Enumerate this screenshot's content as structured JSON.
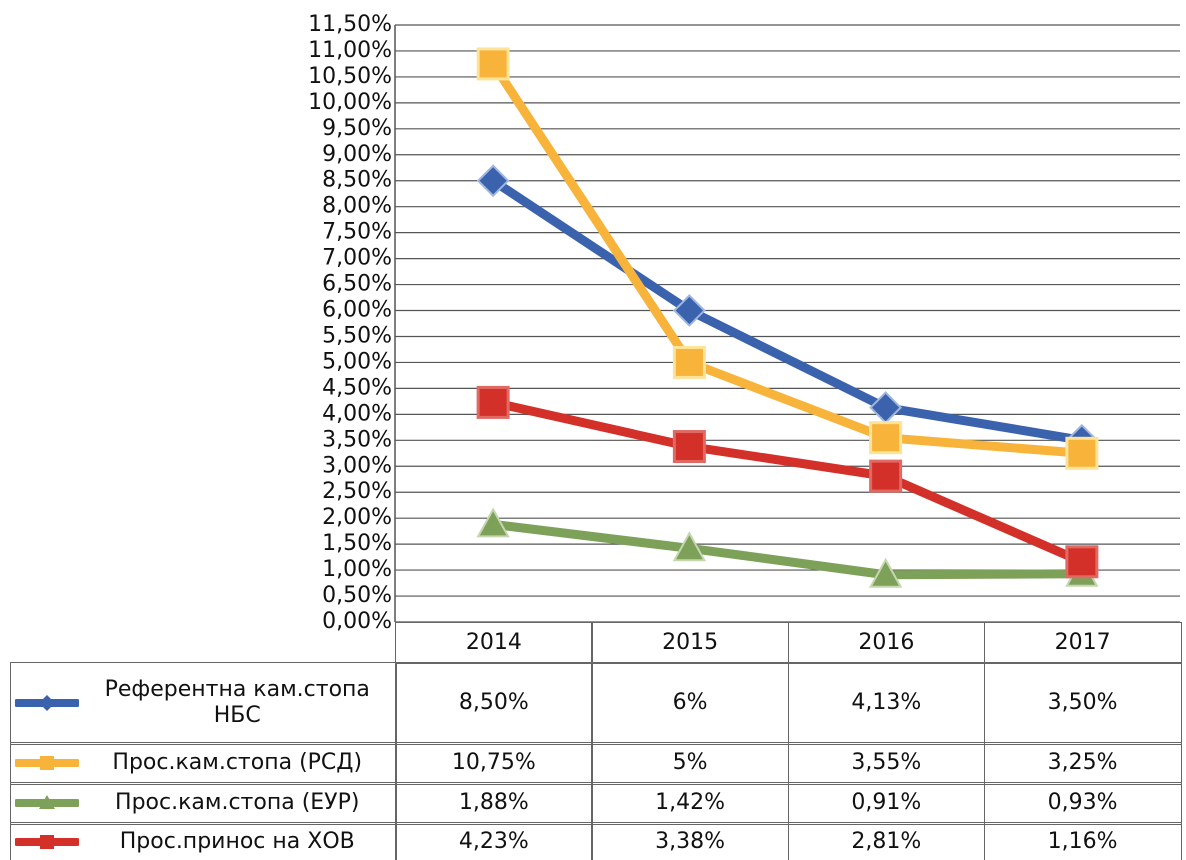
{
  "chart_data": {
    "type": "line",
    "categories": [
      "2014",
      "2015",
      "2016",
      "2017"
    ],
    "series": [
      {
        "name": "Референтна кам.стопа НБС",
        "color": "#3a62ad",
        "marker": "diamond",
        "values": [
          8.5,
          6,
          4.13,
          3.5
        ],
        "value_labels": [
          "8,50%",
          "6%",
          "4,13%",
          "3,50%"
        ]
      },
      {
        "name": "Прос.кам.стопа (РСД)",
        "color": "#f7b33a",
        "marker": "square",
        "values": [
          10.75,
          5,
          3.55,
          3.25
        ],
        "value_labels": [
          "10,75%",
          "5%",
          "3,55%",
          "3,25%"
        ]
      },
      {
        "name": "Прос.кам.стопа (ЕУР)",
        "color": "#7ea15a",
        "marker": "triangle",
        "values": [
          1.88,
          1.42,
          0.91,
          0.93
        ],
        "value_labels": [
          "1,88%",
          "1,42%",
          "0,91%",
          "0,93%"
        ]
      },
      {
        "name": "Прос.принос на ХОВ",
        "color": "#d4302a",
        "marker": "square",
        "values": [
          4.23,
          3.38,
          2.81,
          1.16
        ],
        "value_labels": [
          "4,23%",
          "3,38%",
          "2,81%",
          "1,16%"
        ]
      }
    ],
    "ylim": [
      0,
      11.5
    ],
    "yticks": [
      {
        "value": 0,
        "label": "0,00%"
      },
      {
        "value": 0.5,
        "label": "0,50%"
      },
      {
        "value": 1,
        "label": "1,00%"
      },
      {
        "value": 1.5,
        "label": "1,50%"
      },
      {
        "value": 2,
        "label": "2,00%"
      },
      {
        "value": 2.5,
        "label": "2,50%"
      },
      {
        "value": 3,
        "label": "3,00%"
      },
      {
        "value": 3.5,
        "label": "3,50%"
      },
      {
        "value": 4,
        "label": "4,00%"
      },
      {
        "value": 4.5,
        "label": "4,50%"
      },
      {
        "value": 5,
        "label": "5,00%"
      },
      {
        "value": 5.5,
        "label": "5,50%"
      },
      {
        "value": 6,
        "label": "6,00%"
      },
      {
        "value": 6.5,
        "label": "6,50%"
      },
      {
        "value": 7,
        "label": "7,00%"
      },
      {
        "value": 7.5,
        "label": "7,50%"
      },
      {
        "value": 8,
        "label": "8,00%"
      },
      {
        "value": 8.5,
        "label": "8,50%"
      },
      {
        "value": 9,
        "label": "9,00%"
      },
      {
        "value": 9.5,
        "label": "9,50%"
      },
      {
        "value": 10,
        "label": "10,00%"
      },
      {
        "value": 10.5,
        "label": "10,50%"
      },
      {
        "value": 11,
        "label": "11,00%"
      },
      {
        "value": 11.5,
        "label": "11,50%"
      }
    ],
    "grid": true
  }
}
